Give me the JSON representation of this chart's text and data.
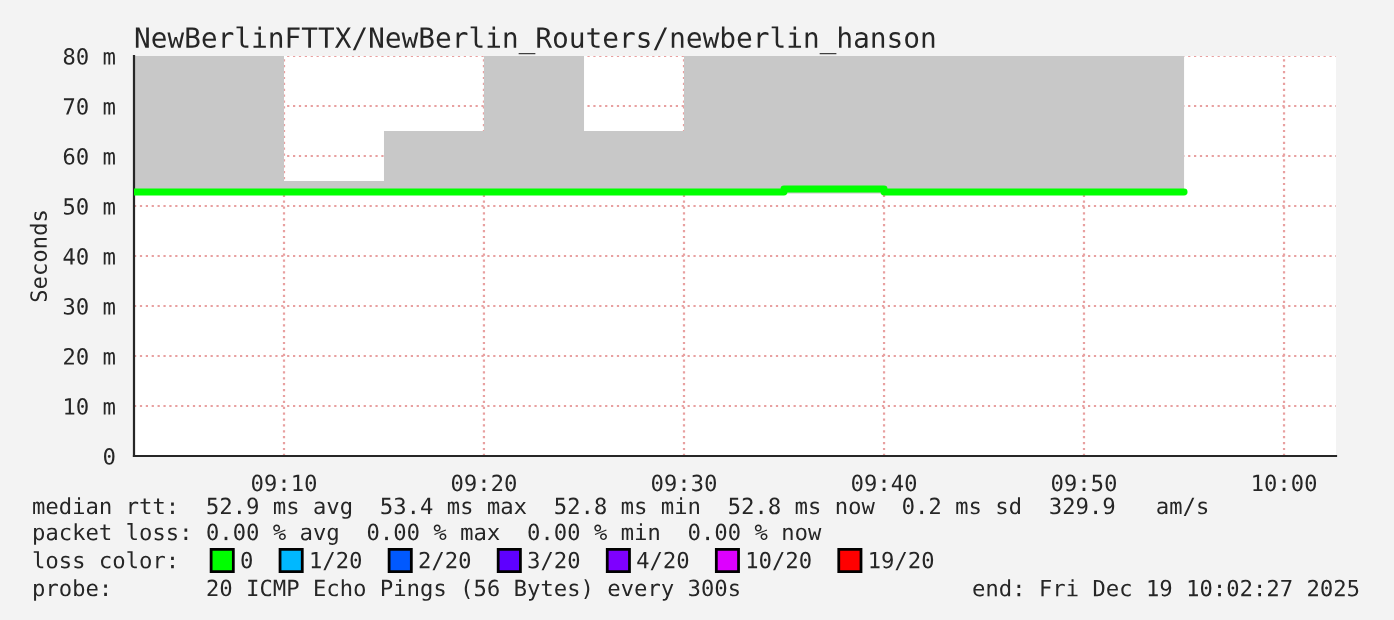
{
  "chart_data": {
    "type": "step",
    "title": "NewBerlinFTTX/NewBerlin_Routers/newberlin_hanson",
    "ylabel": "Seconds",
    "x": [
      9.0417,
      9.0833,
      9.1667,
      9.25,
      9.3333,
      9.4167,
      9.5,
      9.5833,
      9.6667,
      9.75,
      9.8333,
      9.9167
    ],
    "series": [
      {
        "name": "0",
        "color": "#00ff00",
        "values": [
          52.8,
          52.8,
          52.8,
          52.8,
          52.8,
          52.8,
          52.8,
          53.4,
          52.8,
          52.8,
          52.8,
          52.8
        ],
        "lower": [
          52.5,
          52.5,
          52.5,
          52.5,
          52.5,
          52.5,
          52.5,
          52.5,
          52.5,
          52.5,
          52.5,
          52.5
        ],
        "upper": [
          80,
          80,
          55,
          65,
          80,
          65,
          80,
          80,
          80,
          80,
          80,
          80
        ]
      },
      {
        "name": "1/20",
        "color": "#00b8ff",
        "values": [
          null,
          null,
          null,
          null,
          null,
          null,
          null,
          null,
          null,
          null,
          null,
          null
        ]
      },
      {
        "name": "2/20",
        "color": "#0059ff",
        "values": [
          null,
          null,
          null,
          null,
          null,
          null,
          null,
          null,
          null,
          null,
          null,
          null
        ]
      },
      {
        "name": "3/20",
        "color": "#5e00ff",
        "values": [
          null,
          null,
          null,
          null,
          null,
          null,
          null,
          null,
          null,
          null,
          null,
          null
        ]
      },
      {
        "name": "4/20",
        "color": "#7e00ff",
        "values": [
          null,
          null,
          null,
          null,
          null,
          null,
          null,
          null,
          null,
          null,
          null,
          null
        ]
      },
      {
        "name": "10/20",
        "color": "#dd00ff",
        "values": [
          null,
          null,
          null,
          null,
          null,
          null,
          null,
          null,
          null,
          null,
          null,
          null
        ]
      },
      {
        "name": "19/20",
        "color": "#ff0000",
        "values": [
          null,
          null,
          null,
          null,
          null,
          null,
          null,
          null,
          null,
          null,
          null,
          null
        ]
      }
    ],
    "legend_title": "loss color:",
    "legend": "bottom",
    "xlim": [
      9.0417,
      10.0433
    ],
    "xticks": [
      {
        "value": 9.1667,
        "label": "09:10"
      },
      {
        "value": 9.3333,
        "label": "09:20"
      },
      {
        "value": 9.5,
        "label": "09:30"
      },
      {
        "value": 9.6667,
        "label": "09:40"
      },
      {
        "value": 9.8333,
        "label": "09:50"
      },
      {
        "value": 10.0,
        "label": "10:00"
      }
    ],
    "ylim": [
      0,
      80
    ],
    "yticks": [
      {
        "value": 0,
        "label": "0"
      },
      {
        "value": 10,
        "label": "10 m"
      },
      {
        "value": 20,
        "label": "20 m"
      },
      {
        "value": 30,
        "label": "30 m"
      },
      {
        "value": 40,
        "label": "40 m"
      },
      {
        "value": 50,
        "label": "50 m"
      },
      {
        "value": 60,
        "label": "60 m"
      },
      {
        "value": 70,
        "label": "70 m"
      },
      {
        "value": 80,
        "label": "80 m"
      }
    ],
    "grid": true,
    "annotations": [
      "median rtt:  52.9 ms avg  53.4 ms max  52.8 ms min  52.8 ms now  0.2 ms sd  329.9   am/s",
      "packet loss: 0.00 % avg  0.00 % max  0.00 % min  0.00 % now",
      "probe:       20 ICMP Echo Pings (56 Bytes) every 300s",
      "end: Fri Dec 19 10:02:27 2025"
    ]
  }
}
